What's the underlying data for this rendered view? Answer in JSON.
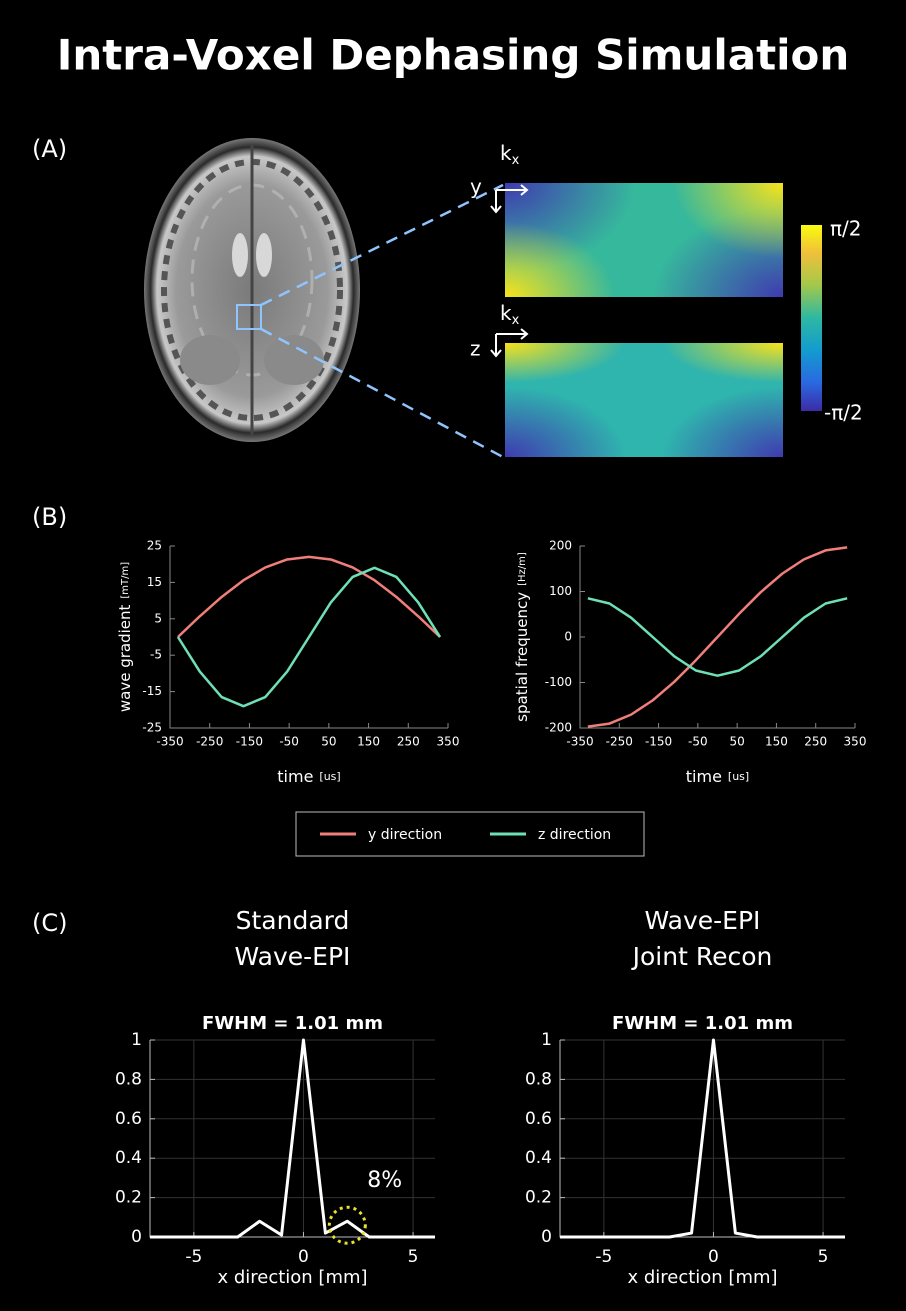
{
  "title": "Intra-Voxel Dephasing Simulation",
  "panel_labels": [
    "(A)",
    "(B)",
    "(C)"
  ],
  "phase_maps": {
    "col_axis": "k",
    "col_axis_sub": "x",
    "row_axis_top": "y",
    "row_axis_bottom": "z",
    "colorbar_max": "π/2",
    "colorbar_min": "-π/2"
  },
  "chart_data": [
    {
      "type": "line",
      "x_label": "time",
      "x_unit": "[us]",
      "y_label": "wave gradient",
      "y_unit": "[mT/m]",
      "x": [
        -330,
        -275,
        -220,
        -165,
        -110,
        -55,
        0,
        55,
        110,
        165,
        220,
        275,
        330
      ],
      "series": [
        {
          "name": "y direction",
          "color": "#f07f7a",
          "values": [
            0,
            5.7,
            11,
            15.6,
            19.1,
            21.3,
            22,
            21.3,
            19.1,
            15.6,
            11,
            5.7,
            0
          ]
        },
        {
          "name": "z direction",
          "color": "#6fe0b5",
          "values": [
            0,
            -9.5,
            -16.5,
            -19,
            -16.5,
            -9.5,
            0,
            9.5,
            16.5,
            19,
            16.5,
            9.5,
            0
          ]
        }
      ],
      "xlim": [
        -350,
        350
      ],
      "xticks": [
        -350,
        -250,
        -150,
        -50,
        50,
        150,
        250,
        350
      ],
      "ylim": [
        -25,
        25
      ],
      "yticks": [
        -25,
        -15,
        -5,
        5,
        15,
        25
      ],
      "grid": false
    },
    {
      "type": "line",
      "x_label": "time",
      "x_unit": "[us]",
      "y_label": "spatial frequency",
      "y_unit": "[Hz/m]",
      "x": [
        -330,
        -275,
        -220,
        -165,
        -110,
        -55,
        0,
        55,
        110,
        165,
        220,
        275,
        330
      ],
      "series": [
        {
          "name": "y direction",
          "color": "#f07f7a",
          "values": [
            -197,
            -190.3,
            -170.6,
            -139.3,
            -98.5,
            -51,
            0,
            51,
            98.5,
            139.3,
            170.6,
            190.3,
            197
          ]
        },
        {
          "name": "z direction",
          "color": "#6fe0b5",
          "values": [
            85,
            73.6,
            42.5,
            0,
            -42.5,
            -73.6,
            -85,
            -73.6,
            -42.5,
            0,
            42.5,
            73.6,
            85
          ]
        }
      ],
      "xlim": [
        -350,
        350
      ],
      "xticks": [
        -350,
        -250,
        -150,
        -50,
        50,
        150,
        250,
        350
      ],
      "ylim": [
        -200,
        200
      ],
      "yticks": [
        -200,
        -100,
        0,
        100,
        200
      ],
      "grid": false
    },
    {
      "type": "line",
      "heading": [
        "Standard",
        "Wave-EPI"
      ],
      "title": "FWHM = 1.01 mm",
      "x_label": "x direction [mm]",
      "x": [
        -7,
        -3,
        -2,
        -1,
        0,
        1,
        2,
        3,
        6
      ],
      "series": [
        {
          "color": "#ffffff",
          "values": [
            0,
            0,
            0.08,
            0.01,
            1,
            0.02,
            0.08,
            0,
            0
          ]
        }
      ],
      "annotation": "8%",
      "annotation_color": "#e8e030",
      "xlim": [
        -7,
        6
      ],
      "xticks": [
        -5,
        0,
        5
      ],
      "ylim": [
        0,
        1
      ],
      "yticks": [
        0,
        0.2,
        0.4,
        0.6,
        0.8,
        1
      ],
      "grid": true
    },
    {
      "type": "line",
      "heading": [
        "Wave-EPI",
        "Joint Recon"
      ],
      "title": "FWHM = 1.01 mm",
      "x_label": "x direction [mm]",
      "x": [
        -7,
        -2,
        -1,
        0,
        1,
        2,
        6
      ],
      "series": [
        {
          "color": "#ffffff",
          "values": [
            0,
            0,
            0.02,
            1,
            0.02,
            0,
            0
          ]
        }
      ],
      "xlim": [
        -7,
        6
      ],
      "xticks": [
        -5,
        0,
        5
      ],
      "ylim": [
        0,
        1
      ],
      "yticks": [
        0,
        0.2,
        0.4,
        0.6,
        0.8,
        1
      ],
      "grid": true
    }
  ]
}
